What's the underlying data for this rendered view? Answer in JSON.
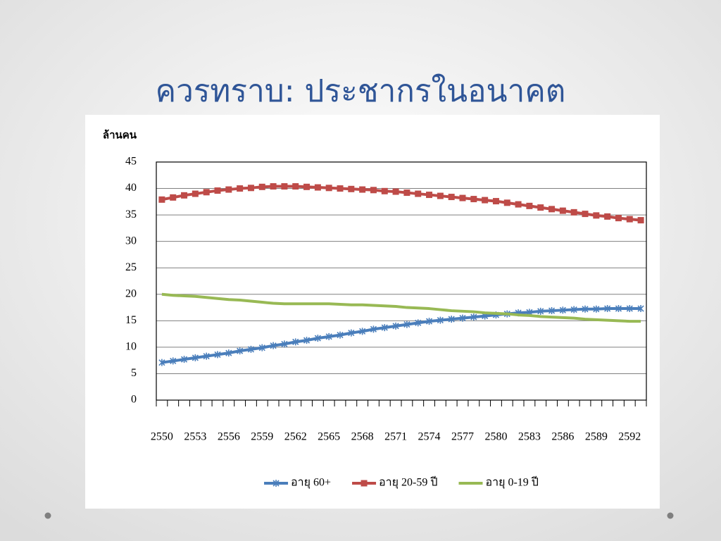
{
  "chart_data": {
    "type": "line",
    "title": "ควรทราบ: ประชากรในอนาคต",
    "y_label": "ล้านคน",
    "categories": [
      "2550",
      null,
      null,
      "2553",
      null,
      null,
      "2556",
      null,
      null,
      "2559",
      null,
      null,
      "2562",
      null,
      null,
      "2565",
      null,
      null,
      "2568",
      null,
      null,
      "2571",
      null,
      null,
      "2574",
      null,
      null,
      "2577",
      null,
      null,
      "2580",
      null,
      null,
      "2583",
      null,
      null,
      "2586",
      null,
      null,
      "2589",
      null,
      null,
      "2592",
      null
    ],
    "series": [
      {
        "name": "อายุ 60+",
        "color": "#4a7ebb",
        "marker": "star",
        "values": [
          7.1,
          7.4,
          7.7,
          8.0,
          8.3,
          8.6,
          8.9,
          9.3,
          9.6,
          9.9,
          10.3,
          10.6,
          11.0,
          11.3,
          11.7,
          12.0,
          12.3,
          12.7,
          13.0,
          13.4,
          13.7,
          14.0,
          14.3,
          14.6,
          14.9,
          15.1,
          15.3,
          15.5,
          15.7,
          15.9,
          16.1,
          16.3,
          16.5,
          16.6,
          16.8,
          16.9,
          17.0,
          17.1,
          17.2,
          17.2,
          17.3,
          17.3,
          17.3,
          17.3
        ]
      },
      {
        "name": "อายุ 20-59 ปี",
        "color": "#be4b48",
        "marker": "square",
        "values": [
          37.9,
          38.3,
          38.7,
          39.0,
          39.3,
          39.6,
          39.8,
          40.0,
          40.1,
          40.3,
          40.4,
          40.4,
          40.4,
          40.3,
          40.2,
          40.1,
          40.0,
          39.9,
          39.8,
          39.7,
          39.5,
          39.4,
          39.2,
          39.0,
          38.8,
          38.6,
          38.4,
          38.2,
          38.0,
          37.8,
          37.6,
          37.3,
          37.0,
          36.7,
          36.4,
          36.1,
          35.8,
          35.5,
          35.2,
          34.9,
          34.7,
          34.4,
          34.2,
          34.0
        ]
      },
      {
        "name": "อายุ 0-19 ปี",
        "color": "#98b954",
        "values": [
          20.0,
          19.8,
          19.7,
          19.6,
          19.4,
          19.2,
          19.0,
          18.9,
          18.7,
          18.5,
          18.3,
          18.2,
          18.2,
          18.2,
          18.2,
          18.2,
          18.1,
          18.0,
          18.0,
          17.9,
          17.8,
          17.7,
          17.5,
          17.4,
          17.3,
          17.1,
          16.9,
          16.8,
          16.7,
          16.5,
          16.4,
          16.3,
          16.1,
          16.0,
          15.8,
          15.7,
          15.6,
          15.5,
          15.3,
          15.2,
          15.1,
          15.0,
          14.9,
          14.9
        ]
      }
    ],
    "ylim": [
      0,
      45
    ],
    "yticks": [
      0,
      5,
      10,
      15,
      20,
      25,
      30,
      35,
      40,
      45
    ],
    "grid": true,
    "legend": "bottom"
  }
}
